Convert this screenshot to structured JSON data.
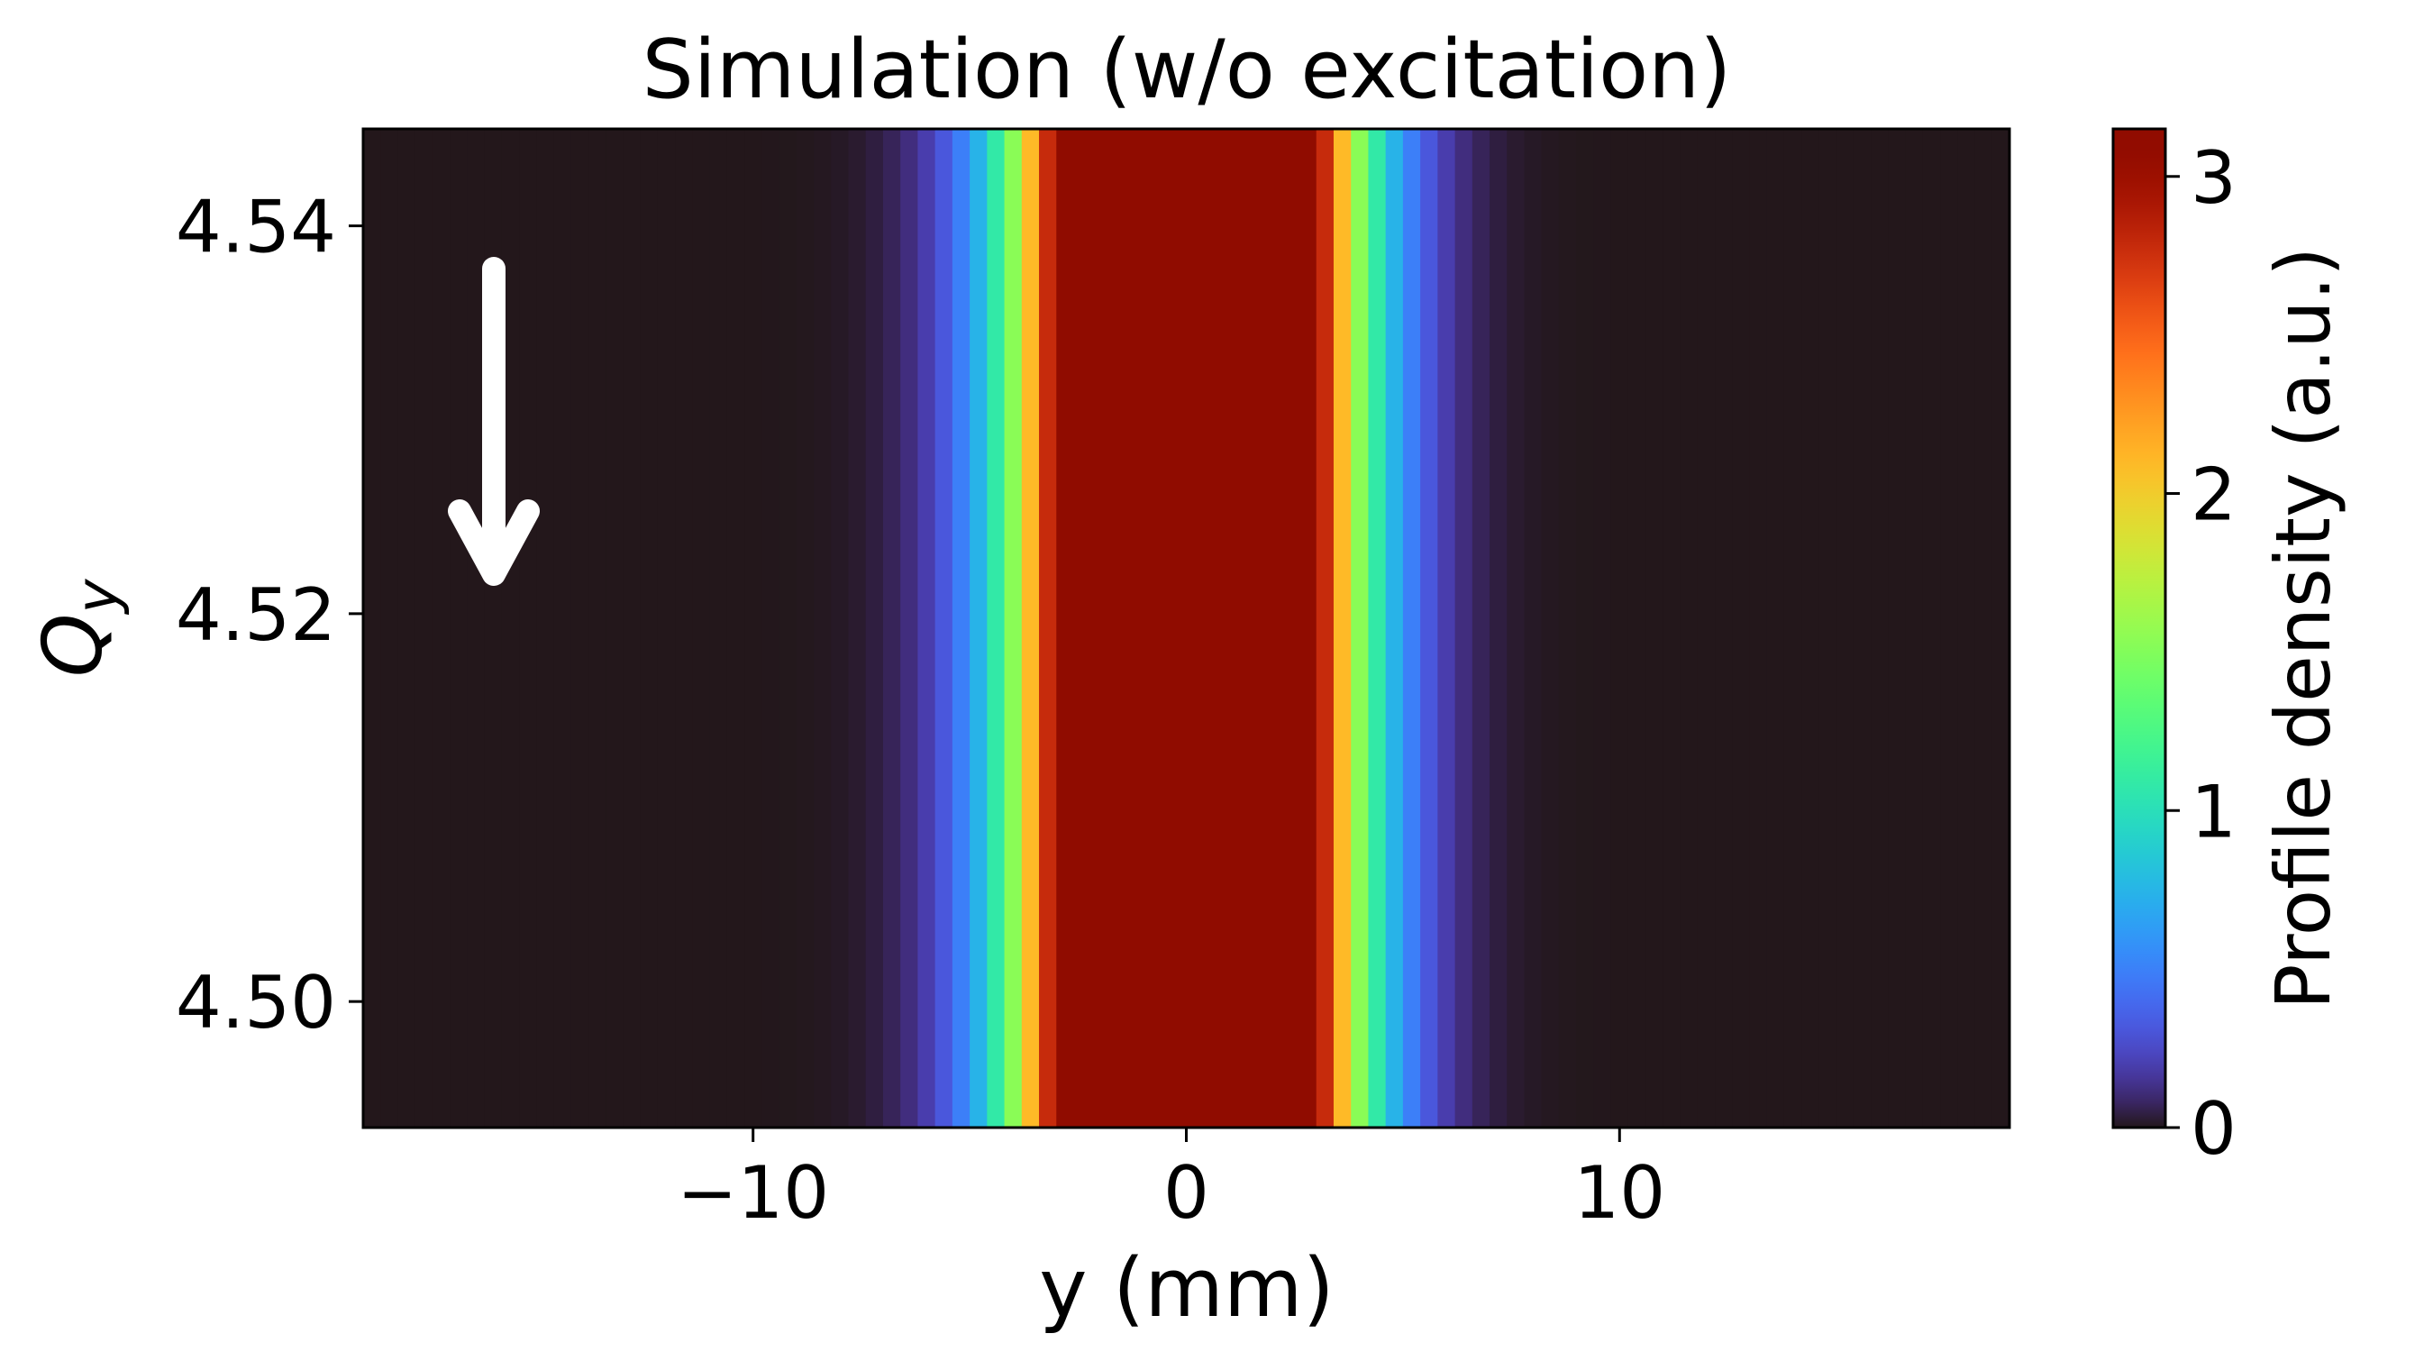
{
  "chart_data": {
    "type": "heatmap",
    "title": "Simulation (w/o excitation)",
    "xlabel": "y (mm)",
    "ylabel_main": "Q",
    "ylabel_sub": "y",
    "xlim": [
      -19,
      19
    ],
    "ylim": [
      4.4935,
      4.545
    ],
    "x_ticks": [
      -10,
      0,
      10
    ],
    "x_tick_labels": [
      "−10",
      "0",
      "10"
    ],
    "y_ticks": [
      4.5,
      4.52,
      4.54
    ],
    "y_tick_labels": [
      "4.50",
      "4.52",
      "4.54"
    ],
    "colorbar": {
      "label": "Profile density (a.u.)",
      "range": [
        0,
        3.15
      ],
      "ticks": [
        0,
        1,
        2,
        3
      ],
      "tick_labels": [
        "0",
        "1",
        "2",
        "3"
      ],
      "colormap": "turbo"
    },
    "profile": {
      "shape": "gaussian",
      "center_mm": 0,
      "sigma_mm": 2.2,
      "peak_density": 8.0,
      "x_bin_mm": 0.4
    },
    "annotation": {
      "type": "arrow",
      "direction": "down",
      "color": "#ffffff"
    },
    "grid": false
  }
}
